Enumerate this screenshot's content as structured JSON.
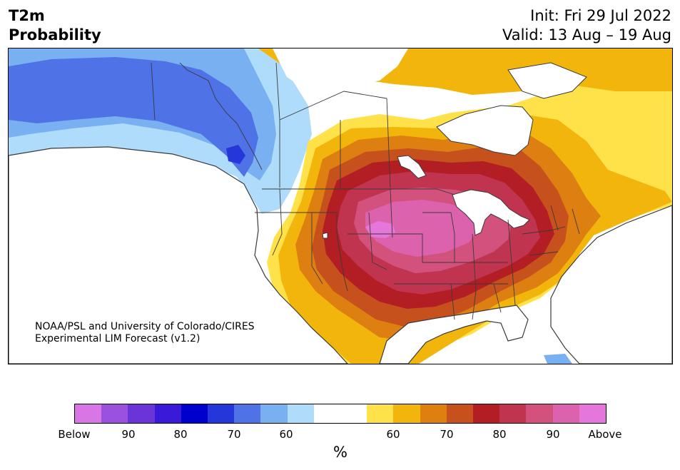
{
  "header": {
    "title_line1": "T2m",
    "title_line2": "Probability",
    "init": "Init: Fri 29 Jul 2022",
    "valid": "Valid: 13 Aug – 19 Aug"
  },
  "credit": {
    "line1": "NOAA/PSL and University of Colorado/CIRES",
    "line2": "Experimental LIM Forecast (v1.2)"
  },
  "colorbar": {
    "unit": "%",
    "colors": [
      "#d876e6",
      "#9a52de",
      "#6a35d8",
      "#3a1ad8",
      "#0000cc",
      "#2537d8",
      "#4f72e6",
      "#78b0f2",
      "#aedcfa",
      "#ffffff",
      "#ffffff",
      "#ffe24a",
      "#f2b50c",
      "#dd8011",
      "#c6511d",
      "#b21e24",
      "#c1344f",
      "#d2527d",
      "#dc62ad",
      "#e677da"
    ],
    "labels": [
      "Below",
      "90",
      "80",
      "70",
      "60",
      "60",
      "70",
      "80",
      "90",
      "Above"
    ]
  },
  "map": {
    "fill_colors": {
      "blue_light": "#aedcfa",
      "blue_mid": "#78b0f2",
      "blue": "#4f72e6",
      "blue_deep": "#2537d8",
      "yellow": "#ffe24a",
      "gold": "#f2b50c",
      "orange": "#dd8011",
      "burnt": "#c6511d",
      "red": "#b21e24",
      "crimson": "#c1344f",
      "rose": "#d2527d",
      "pink": "#dc62ad",
      "magenta": "#e677da",
      "outline": "#3a3a3a"
    }
  }
}
